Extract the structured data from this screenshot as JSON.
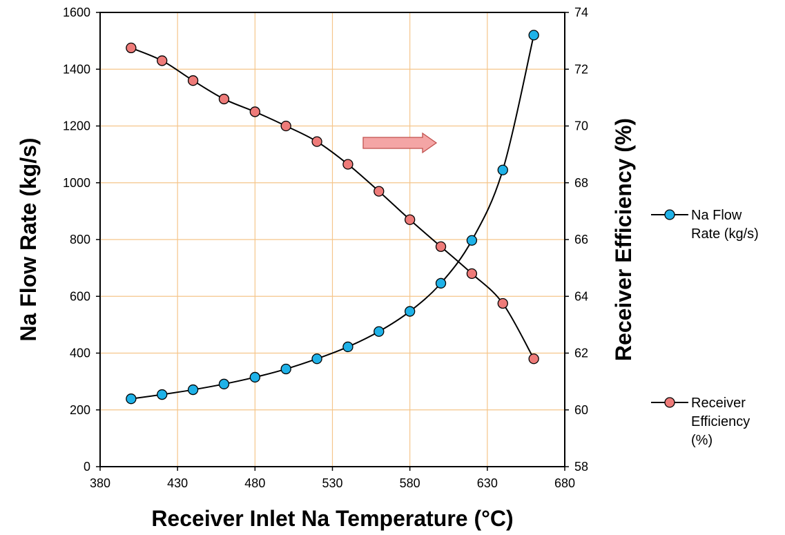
{
  "chart_data": {
    "type": "line",
    "xlabel": "Receiver Inlet Na Temperature (°C)",
    "ylabel": "Na Flow Rate (kg/s)",
    "y2label": "Receiver Efficiency (%)",
    "xlim": [
      380,
      680
    ],
    "ylim": [
      0,
      1600
    ],
    "y2lim": [
      58,
      74
    ],
    "xticks": [
      380,
      430,
      480,
      530,
      580,
      630,
      680
    ],
    "yticks": [
      0,
      200,
      400,
      600,
      800,
      1000,
      1200,
      1400,
      1600
    ],
    "y2ticks": [
      58,
      60,
      62,
      64,
      66,
      68,
      70,
      72,
      74
    ],
    "grid": true,
    "legend_position": "right",
    "x": [
      400,
      420,
      440,
      460,
      480,
      500,
      520,
      540,
      560,
      580,
      600,
      620,
      640,
      660
    ],
    "series": [
      {
        "name": "Na Flow Rate (kg/s)",
        "axis": "left",
        "color": "#1FB2E8",
        "values": [
          239,
          254,
          271,
          291,
          315,
          344,
          380,
          422,
          476,
          547,
          646,
          797,
          1045,
          1520
        ]
      },
      {
        "name": "Receiver Efficiency (%)",
        "axis": "right",
        "color": "#EE7B79",
        "values": [
          72.75,
          72.3,
          71.6,
          70.95,
          70.5,
          70.0,
          69.45,
          68.65,
          67.7,
          66.7,
          65.75,
          64.8,
          63.75,
          61.8
        ]
      }
    ],
    "legend": [
      {
        "lines": [
          "Na Flow",
          "Rate (kg/s)"
        ]
      },
      {
        "lines": [
          "Receiver",
          "Efficiency",
          "(%)"
        ]
      }
    ],
    "annotation": {
      "type": "arrow",
      "direction": "right",
      "color": "#F4A5A5"
    }
  }
}
